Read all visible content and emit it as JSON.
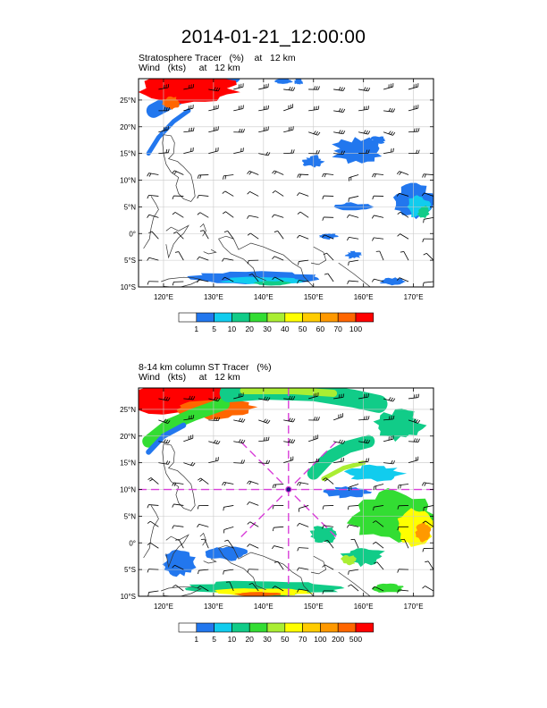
{
  "title": "2014-01-21_12:00:00",
  "colors": {
    "frame": "#000000",
    "grid": "#c8c8c8",
    "coast": "#333333",
    "marker": "#d93fd9"
  },
  "chart_data": [
    {
      "type": "heatmap",
      "title": "Stratosphere Tracer   (%)    at   12 km",
      "subtitle": "Wind   (kts)     at   12 km",
      "xlim": [
        115,
        174
      ],
      "ylim": [
        -10,
        29
      ],
      "x_ticks": [
        120,
        130,
        140,
        150,
        160,
        170
      ],
      "x_tick_labels": [
        "120°E",
        "130°E",
        "140°E",
        "150°E",
        "160°E",
        "170°E"
      ],
      "y_ticks": [
        -10,
        -5,
        0,
        5,
        10,
        15,
        20,
        25
      ],
      "y_tick_labels": [
        "10°S",
        "5°S",
        "0°",
        "5°N",
        "10°N",
        "15°N",
        "20°N",
        "25°N"
      ],
      "grid": true,
      "colorbar": {
        "levels": [
          "1",
          "5",
          "10",
          "20",
          "30",
          "40",
          "50",
          "60",
          "70",
          "100"
        ],
        "colors": [
          "#ffffff",
          "#2277ee",
          "#11ccee",
          "#11cc88",
          "#33dd33",
          "#aaee33",
          "#ffff00",
          "#ffcc00",
          "#ff9900",
          "#ff6600",
          "#ff0000"
        ]
      },
      "features": {
        "high_tracer_region": "northwest corner, >100%",
        "moderate_bands": "northwest streak; eastern cloud near 150-165E, 13-18N; southern band along 8-10S"
      }
    },
    {
      "type": "heatmap",
      "title": "8-14 km column ST Tracer   (%)",
      "subtitle": "Wind   (kts)     at   12 km",
      "xlim": [
        115,
        174
      ],
      "ylim": [
        -10,
        29
      ],
      "x_ticks": [
        120,
        130,
        140,
        150,
        160,
        170
      ],
      "x_tick_labels": [
        "120°E",
        "130°E",
        "140°E",
        "150°E",
        "160°E",
        "170°E"
      ],
      "y_ticks": [
        -10,
        -5,
        0,
        5,
        10,
        15,
        20,
        25
      ],
      "y_tick_labels": [
        "10°S",
        "5°S",
        "0°",
        "5°N",
        "10°N",
        "15°N",
        "20°N",
        "25°N"
      ],
      "grid": true,
      "marker": {
        "lon": 145,
        "lat": 10
      },
      "colorbar": {
        "levels": [
          "1",
          "5",
          "10",
          "20",
          "30",
          "50",
          "70",
          "100",
          "200",
          "500"
        ],
        "colors": [
          "#ffffff",
          "#2277ee",
          "#11ccee",
          "#11cc88",
          "#33dd33",
          "#aaee33",
          "#ffff00",
          "#ffcc00",
          "#ff9900",
          "#ff6600",
          "#ff0000"
        ]
      }
    }
  ]
}
